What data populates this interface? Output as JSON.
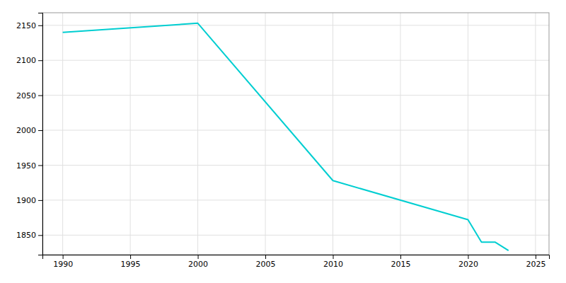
{
  "chart_data": {
    "type": "line",
    "x": [
      1990,
      2000,
      2010,
      2020,
      2021,
      2022,
      2023
    ],
    "values": [
      2140,
      2153,
      1928,
      1872,
      1840,
      1840,
      1828
    ],
    "color": "#00CED1",
    "xlim": [
      1988.5,
      2026
    ],
    "ylim": [
      1822,
      2168
    ],
    "xticks": [
      1990,
      1995,
      2000,
      2005,
      2010,
      2015,
      2020,
      2025
    ],
    "yticks": [
      1850,
      1900,
      1950,
      2000,
      2050,
      2100,
      2150
    ],
    "grid": true
  }
}
